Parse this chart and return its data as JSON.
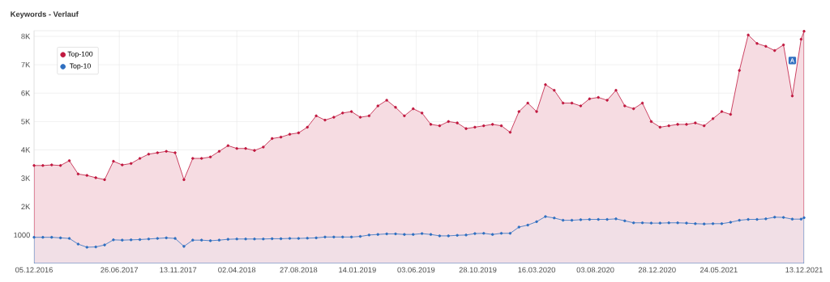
{
  "chart_data": {
    "type": "area",
    "title": "Keywords - Verlauf",
    "x": [
      "2016-12-05",
      "2016-12-26",
      "2017-01-16",
      "2017-02-06",
      "2017-02-27",
      "2017-03-20",
      "2017-04-10",
      "2017-05-01",
      "2017-05-22",
      "2017-06-12",
      "2017-07-03",
      "2017-07-24",
      "2017-08-14",
      "2017-09-04",
      "2017-09-25",
      "2017-10-16",
      "2017-11-06",
      "2017-11-27",
      "2017-12-18",
      "2018-01-08",
      "2018-01-29",
      "2018-02-19",
      "2018-03-12",
      "2018-04-02",
      "2018-04-23",
      "2018-05-14",
      "2018-06-04",
      "2018-06-25",
      "2018-07-16",
      "2018-08-06",
      "2018-08-27",
      "2018-09-17",
      "2018-10-08",
      "2018-10-29",
      "2018-11-19",
      "2018-12-10",
      "2018-12-31",
      "2019-01-21",
      "2019-02-11",
      "2019-03-04",
      "2019-03-25",
      "2019-04-15",
      "2019-05-06",
      "2019-05-27",
      "2019-06-17",
      "2019-07-08",
      "2019-07-29",
      "2019-08-19",
      "2019-09-09",
      "2019-09-30",
      "2019-10-21",
      "2019-11-11",
      "2019-12-02",
      "2019-12-23",
      "2020-01-13",
      "2020-02-03",
      "2020-02-24",
      "2020-03-16",
      "2020-04-06",
      "2020-04-27",
      "2020-05-18",
      "2020-06-08",
      "2020-06-29",
      "2020-07-20",
      "2020-08-10",
      "2020-08-31",
      "2020-09-21",
      "2020-10-12",
      "2020-11-02",
      "2020-11-23",
      "2020-12-14",
      "2021-01-04",
      "2021-01-25",
      "2021-02-15",
      "2021-03-08",
      "2021-03-29",
      "2021-04-19",
      "2021-05-10",
      "2021-05-31",
      "2021-06-21",
      "2021-07-12",
      "2021-08-02",
      "2021-08-23",
      "2021-09-13",
      "2021-10-04",
      "2021-10-25",
      "2021-11-15",
      "2021-12-06",
      "2021-12-13"
    ],
    "series": [
      {
        "name": "Top-100",
        "color": "#c0183f",
        "values": [
          3450,
          3450,
          3470,
          3450,
          3620,
          3150,
          3100,
          3020,
          2950,
          3600,
          3470,
          3520,
          3700,
          3850,
          3900,
          3950,
          3900,
          2950,
          3700,
          3700,
          3750,
          3950,
          4150,
          4050,
          4050,
          3980,
          4100,
          4400,
          4450,
          4550,
          4600,
          4800,
          5200,
          5050,
          5150,
          5300,
          5350,
          5150,
          5200,
          5550,
          5750,
          5500,
          5200,
          5450,
          5300,
          4900,
          4850,
          5000,
          4950,
          4750,
          4800,
          4850,
          4900,
          4850,
          4620,
          5350,
          5650,
          5350,
          6300,
          6100,
          5650,
          5650,
          5550,
          5800,
          5850,
          5750,
          6100,
          5550,
          5450,
          5650,
          5000,
          4800,
          4850,
          4900,
          4900,
          4950,
          4850,
          5100,
          5350,
          5250,
          6800,
          8050,
          7750,
          7650,
          7500,
          7700,
          5900,
          7900,
          8180
        ]
      },
      {
        "name": "Top-10",
        "color": "#2f6fc0",
        "values": [
          920,
          920,
          920,
          900,
          880,
          680,
          570,
          580,
          650,
          830,
          820,
          830,
          840,
          860,
          880,
          900,
          880,
          600,
          820,
          820,
          800,
          820,
          850,
          860,
          860,
          860,
          860,
          870,
          870,
          880,
          880,
          890,
          900,
          930,
          930,
          930,
          930,
          950,
          1000,
          1020,
          1040,
          1040,
          1020,
          1020,
          1050,
          1020,
          970,
          970,
          990,
          1000,
          1050,
          1060,
          1020,
          1060,
          1060,
          1280,
          1350,
          1470,
          1650,
          1600,
          1520,
          1520,
          1540,
          1550,
          1550,
          1550,
          1570,
          1500,
          1430,
          1430,
          1420,
          1420,
          1430,
          1430,
          1420,
          1400,
          1390,
          1400,
          1400,
          1450,
          1520,
          1550,
          1550,
          1570,
          1630,
          1620,
          1560,
          1560,
          1610
        ]
      }
    ],
    "xlim": [
      "2016-12-05",
      "2021-12-13"
    ],
    "xticks": [
      {
        "value": "2016-12-05",
        "label": "05.12.2016"
      },
      {
        "value": "2017-06-26",
        "label": "26.06.2017"
      },
      {
        "value": "2017-11-13",
        "label": "13.11.2017"
      },
      {
        "value": "2018-04-02",
        "label": "02.04.2018"
      },
      {
        "value": "2018-08-27",
        "label": "27.08.2018"
      },
      {
        "value": "2019-01-14",
        "label": "14.01.2019"
      },
      {
        "value": "2019-06-03",
        "label": "03.06.2019"
      },
      {
        "value": "2019-10-28",
        "label": "28.10.2019"
      },
      {
        "value": "2020-03-16",
        "label": "16.03.2020"
      },
      {
        "value": "2020-08-03",
        "label": "03.08.2020"
      },
      {
        "value": "2020-12-28",
        "label": "28.12.2020"
      },
      {
        "value": "2021-05-24",
        "label": "24.05.2021"
      },
      {
        "value": "2021-12-13",
        "label": "13.12.2021"
      }
    ],
    "ylim": [
      0,
      8200
    ],
    "yticks": [
      1000,
      {
        "value": 2000,
        "label": "2K"
      },
      {
        "value": 3000,
        "label": "3K"
      },
      {
        "value": 4000,
        "label": "4K"
      },
      {
        "value": 5000,
        "label": "5K"
      },
      {
        "value": 6000,
        "label": "6K"
      },
      {
        "value": 7000,
        "label": "7K"
      },
      {
        "value": 8000,
        "label": "8K"
      }
    ],
    "annotations": [
      {
        "text": "A",
        "x": "2021-11-15",
        "y": 7150
      }
    ],
    "grid": true,
    "legend": "top left",
    "marker": "circle",
    "line_style": "solid"
  }
}
